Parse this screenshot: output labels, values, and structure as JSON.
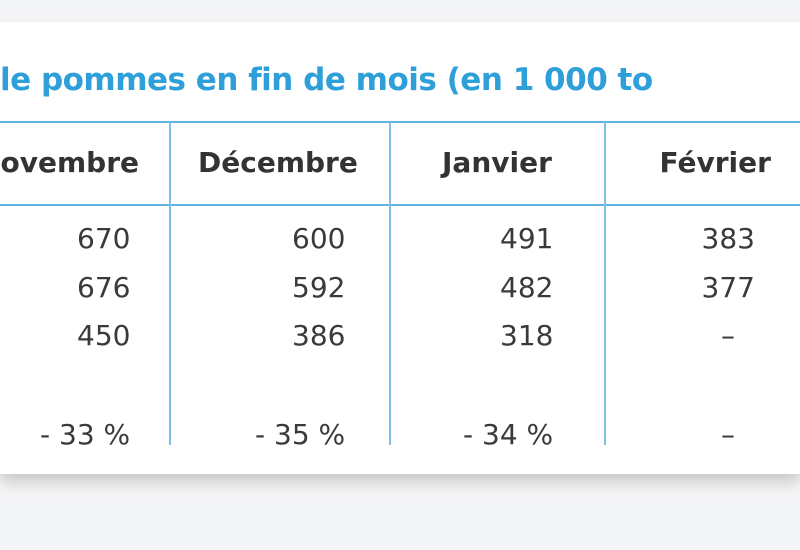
{
  "title": "le pommes en fin de mois (en 1 000 to",
  "table": {
    "header": [
      "ovembre",
      "Décembre",
      "Janvier",
      "Février"
    ],
    "rows": [
      [
        "670",
        "600",
        "491",
        "383"
      ],
      [
        "676",
        "592",
        "482",
        "377"
      ],
      [
        "450",
        "386",
        "318",
        "–"
      ],
      [
        "- 33 %",
        "- 35 %",
        "- 34 %",
        "–"
      ]
    ]
  }
}
